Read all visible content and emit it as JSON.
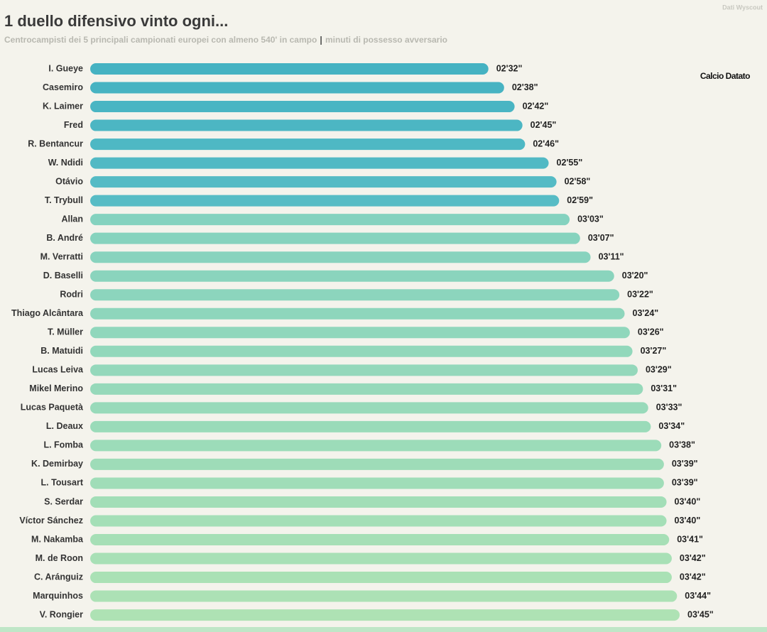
{
  "chart_data": {
    "type": "bar",
    "title": "1 duello difensivo vinto ogni...",
    "subtitle": "Centrocampisti dei 5 principali campionati europei con almeno 540' in campo",
    "subtitle_separator": "|",
    "subtitle_unit": "minuti di possesso avversario",
    "source": "Dati Wyscout",
    "logo": "Calcio Datato",
    "categories": [
      "I. Gueye",
      "Casemiro",
      "K. Laimer",
      "Fred",
      "R. Bentancur",
      "W. Ndidi",
      "Otávio",
      "T. Trybull",
      "Allan",
      "B. André",
      "M. Verratti",
      "D. Baselli",
      "Rodri",
      "Thiago Alcântara",
      "T. Müller",
      "B. Matuidi",
      "Lucas Leiva",
      "Mikel Merino",
      "Lucas Paquetà",
      "L. Deaux",
      "L. Fomba",
      "K. Demirbay",
      "L. Tousart",
      "S. Serdar",
      "Víctor Sánchez",
      "M. Nakamba",
      "M. de Roon",
      "C. Aránguiz",
      "Marquinhos",
      "V. Rongier"
    ],
    "values": [
      152,
      158,
      162,
      165,
      166,
      175,
      178,
      179,
      183,
      187,
      191,
      200,
      202,
      204,
      206,
      207,
      209,
      211,
      213,
      214,
      218,
      219,
      219,
      220,
      220,
      221,
      222,
      222,
      224,
      225
    ],
    "value_labels": [
      "02'32\"",
      "02'38\"",
      "02'42\"",
      "02'45\"",
      "02'46\"",
      "02'55\"",
      "02'58\"",
      "02'59\"",
      "03'03\"",
      "03'07\"",
      "03'11\"",
      "03'20\"",
      "03'22\"",
      "03'24\"",
      "03'26\"",
      "03'27\"",
      "03'29\"",
      "03'31\"",
      "03'33\"",
      "03'34\"",
      "03'38\"",
      "03'39\"",
      "03'39\"",
      "03'40\"",
      "03'40\"",
      "03'41\"",
      "03'42\"",
      "03'42\"",
      "03'44\"",
      "03'45\""
    ],
    "colors": [
      "#45b2c2",
      "#47b3c2",
      "#49b5c3",
      "#4cb6c3",
      "#4eb8c4",
      "#51b9c4",
      "#54bbc5",
      "#57bcc5",
      "#84d2bf",
      "#86d3be",
      "#88d3be",
      "#8ad4bd",
      "#8cd5bd",
      "#8ed6bc",
      "#90d7bc",
      "#92d8bb",
      "#94d8bb",
      "#96d9ba",
      "#98daba",
      "#9adbb9",
      "#9cdcb9",
      "#9edcb8",
      "#a0ddb8",
      "#a2deb7",
      "#a4dfb7",
      "#a6dfb6",
      "#a8e0b6",
      "#aae1b5",
      "#ace1b5",
      "#aee2b4"
    ]
  }
}
